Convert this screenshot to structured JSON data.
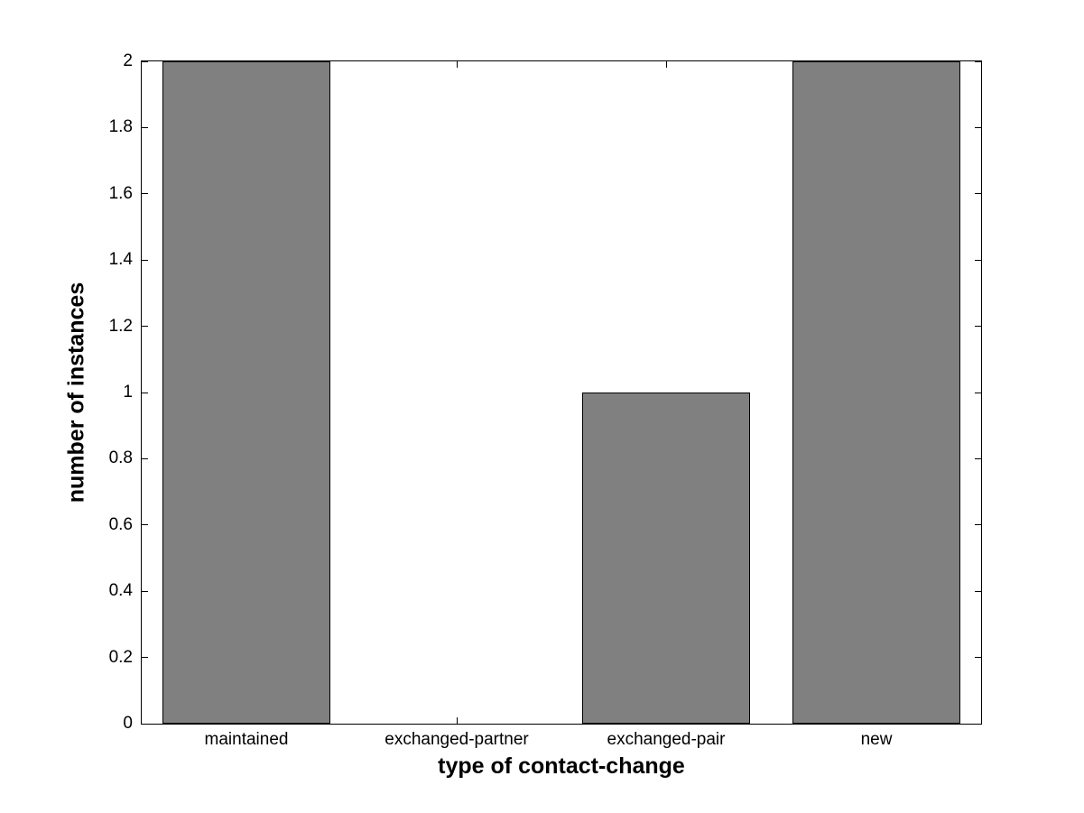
{
  "chart_data": {
    "type": "bar",
    "title": "",
    "xlabel": "type of contact-change",
    "ylabel": "number of instances",
    "categories": [
      "maintained",
      "exchanged-partner",
      "exchanged-pair",
      "new"
    ],
    "values": [
      2,
      0,
      1,
      2
    ],
    "ylim": [
      0,
      2
    ],
    "yticks": [
      0,
      0.2,
      0.4,
      0.6,
      0.8,
      1,
      1.2,
      1.4,
      1.6,
      1.8,
      2
    ],
    "ytick_labels": [
      "0",
      "0.2",
      "0.4",
      "0.6",
      "0.8",
      "1",
      "1.2",
      "1.4",
      "1.6",
      "1.8",
      "2"
    ],
    "bar_width_fraction": 0.8,
    "bar_color": "#808080",
    "bar_edge_color": "#000000",
    "axis_color": "#000000",
    "background_color": "#ffffff",
    "grid": false,
    "legend": null
  }
}
